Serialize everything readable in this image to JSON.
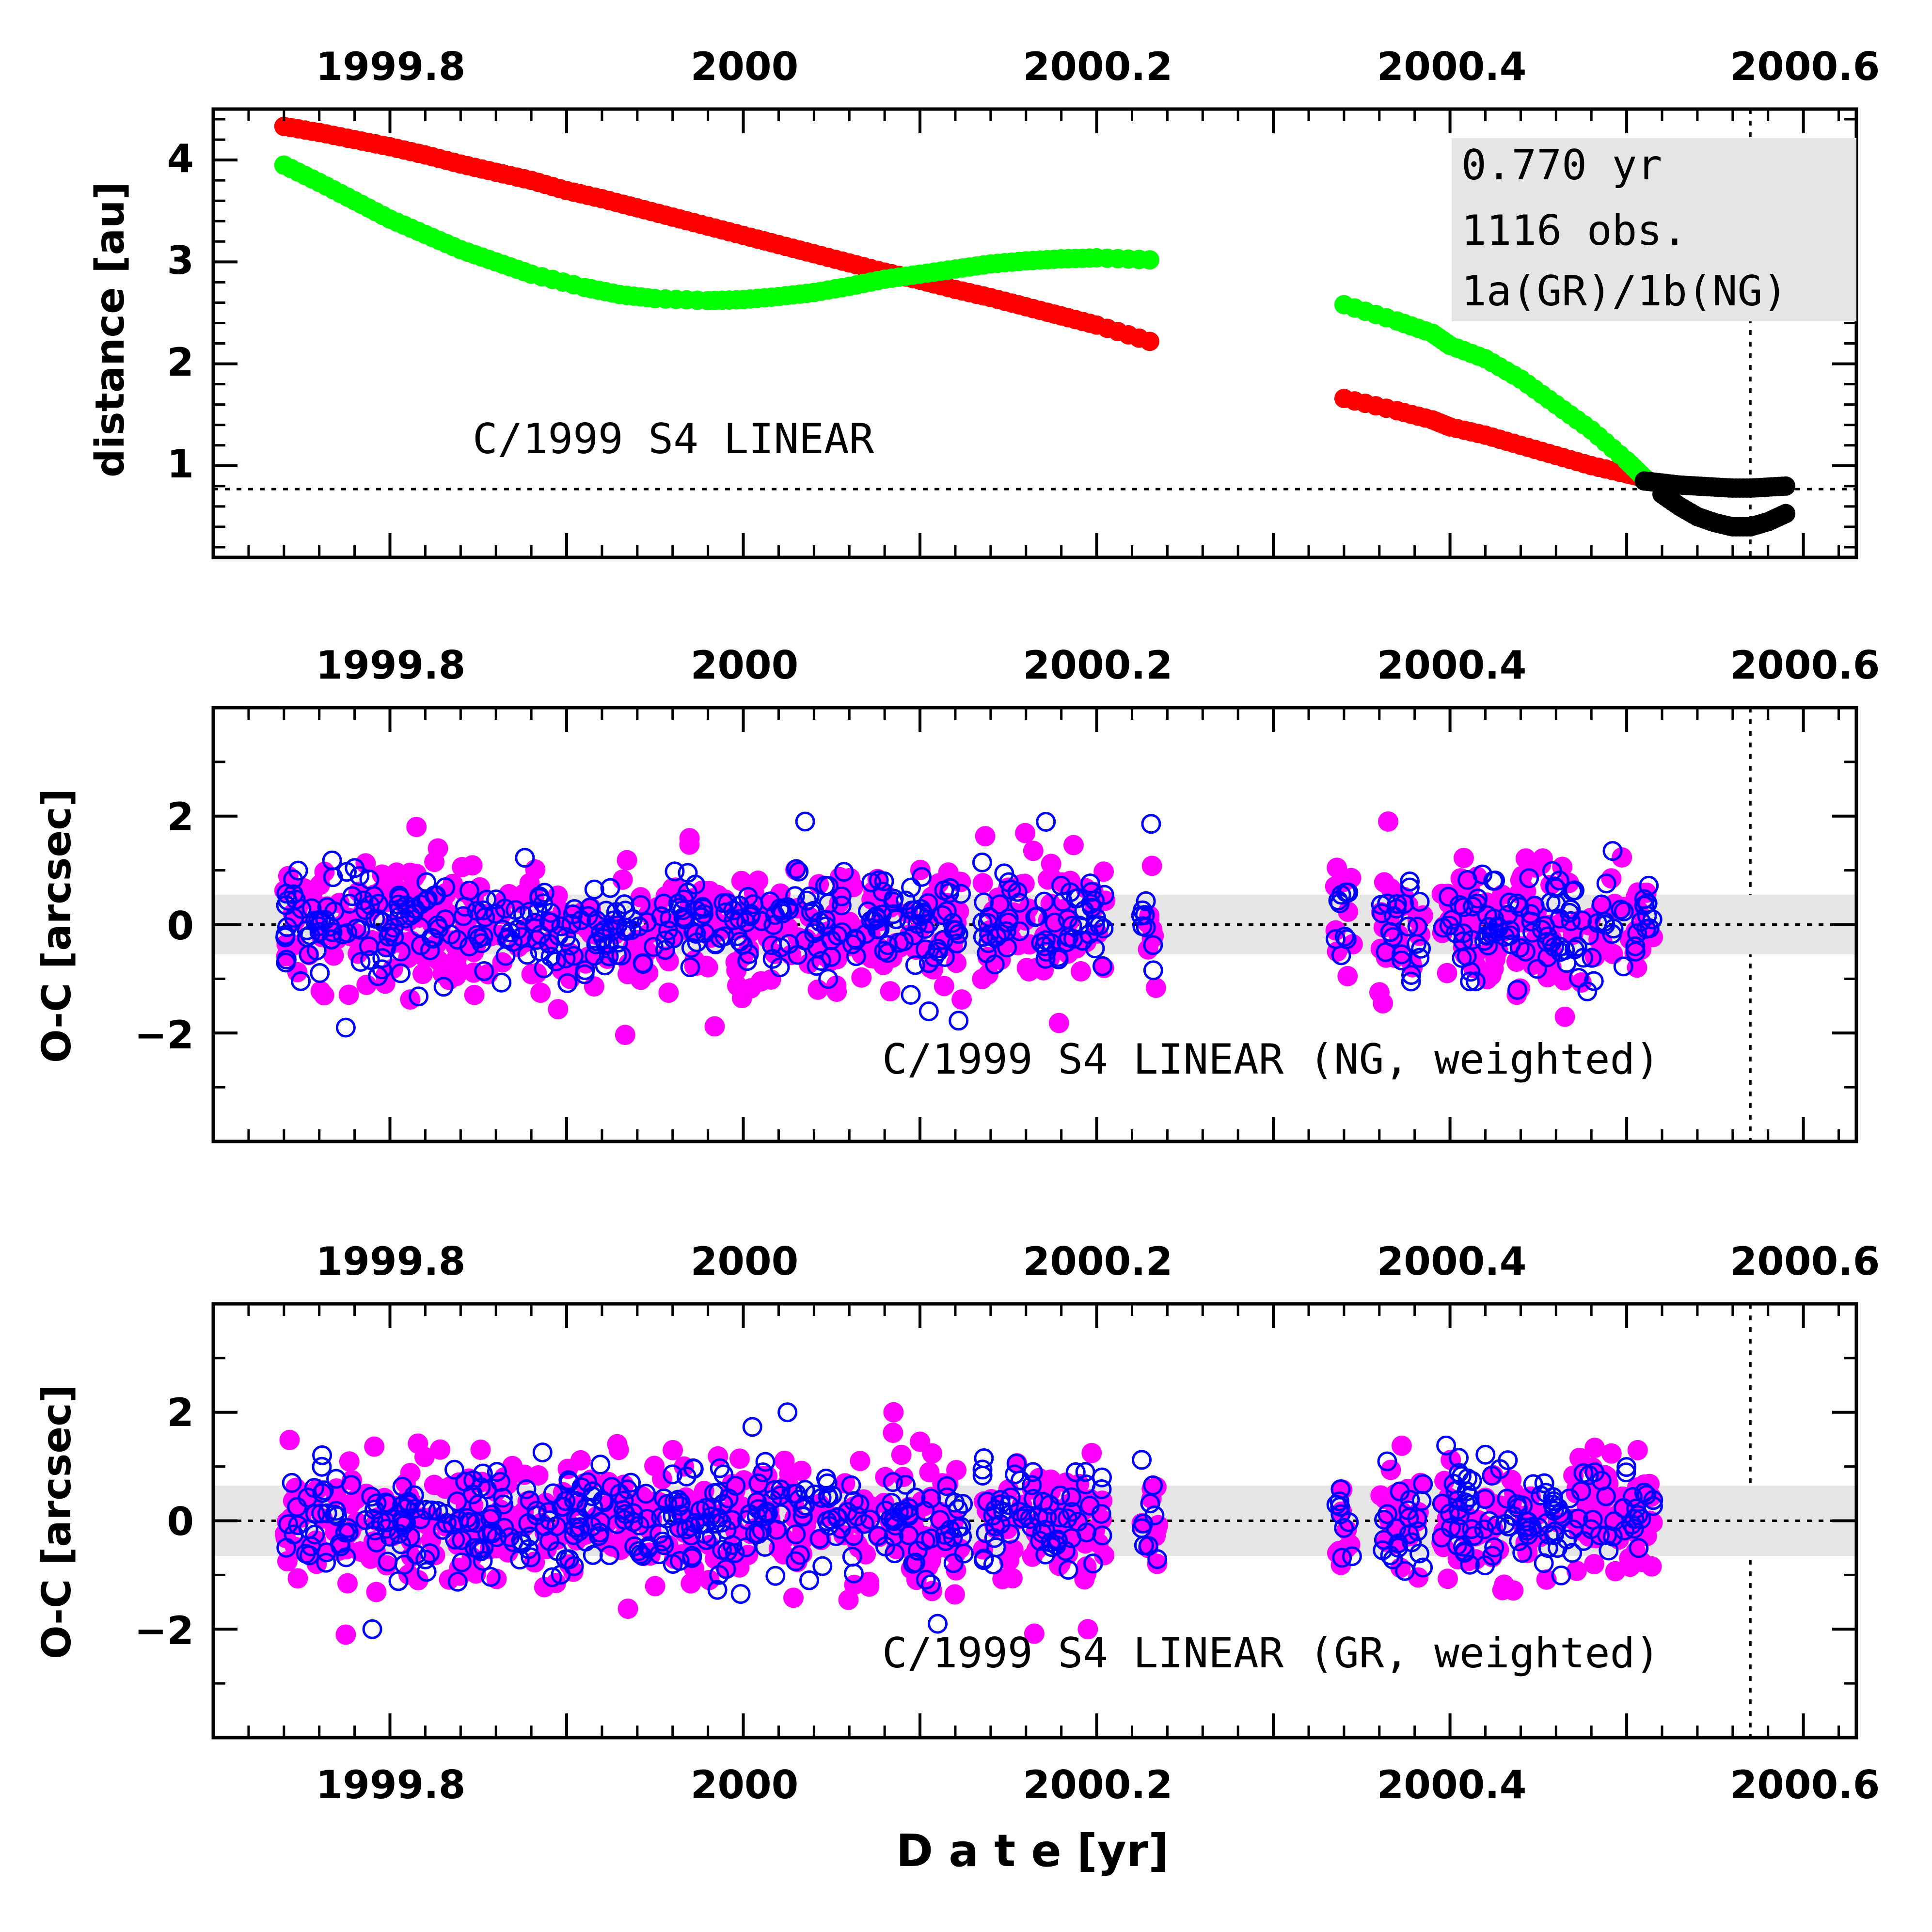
{
  "chart_data": [
    {
      "type": "scatter",
      "panel": "distance",
      "ylabel": "distance [au]",
      "x_tick_labels_top": [
        "1999.8",
        "2000",
        "2000.2",
        "2000.4",
        "2000.6"
      ],
      "y_tick_labels": [
        "1",
        "2",
        "3",
        "4"
      ],
      "xlim": [
        1999.7,
        2000.63
      ],
      "ylim": [
        0.1,
        4.5
      ],
      "reference_line_y": 0.77,
      "reference_line_x": 2000.57,
      "annotation": "C/1999 S4 LINEAR",
      "info_box": [
        "0.770 yr",
        "1116 obs.",
        "1a(GR)/1b(NG)"
      ],
      "colors": {
        "heliocentric": "#ff0000",
        "geocentric": "#00ff00",
        "post_fit": "#000000",
        "box": "#e5e5e5"
      },
      "series": [
        {
          "color_key": "heliocentric",
          "points": [
            [
              1999.74,
              4.33
            ],
            [
              1999.76,
              4.27
            ],
            [
              1999.78,
              4.2
            ],
            [
              1999.8,
              4.13
            ],
            [
              1999.82,
              4.05
            ],
            [
              1999.84,
              3.96
            ],
            [
              1999.86,
              3.88
            ],
            [
              1999.88,
              3.8
            ],
            [
              1999.9,
              3.7
            ],
            [
              1999.92,
              3.62
            ],
            [
              1999.94,
              3.53
            ],
            [
              1999.96,
              3.44
            ],
            [
              1999.98,
              3.35
            ],
            [
              2000.0,
              3.26
            ],
            [
              2000.02,
              3.17
            ],
            [
              2000.04,
              3.08
            ],
            [
              2000.06,
              2.99
            ],
            [
              2000.08,
              2.9
            ],
            [
              2000.1,
              2.82
            ],
            [
              2000.12,
              2.73
            ],
            [
              2000.14,
              2.65
            ],
            [
              2000.16,
              2.56
            ],
            [
              2000.18,
              2.47
            ],
            [
              2000.2,
              2.38
            ],
            [
              2000.23,
              2.22
            ],
            [
              2000.34,
              1.66
            ],
            [
              2000.37,
              1.54
            ],
            [
              2000.39,
              1.45
            ],
            [
              2000.4,
              1.38
            ],
            [
              2000.42,
              1.3
            ],
            [
              2000.44,
              1.2
            ],
            [
              2000.46,
              1.1
            ],
            [
              2000.48,
              1.0
            ],
            [
              2000.5,
              0.92
            ],
            [
              2000.51,
              0.88
            ]
          ]
        },
        {
          "color_key": "geocentric",
          "points": [
            [
              1999.74,
              3.95
            ],
            [
              1999.76,
              3.78
            ],
            [
              1999.78,
              3.6
            ],
            [
              1999.8,
              3.42
            ],
            [
              1999.82,
              3.27
            ],
            [
              1999.84,
              3.12
            ],
            [
              1999.86,
              3.0
            ],
            [
              1999.88,
              2.88
            ],
            [
              1999.91,
              2.75
            ],
            [
              1999.93,
              2.68
            ],
            [
              1999.95,
              2.64
            ],
            [
              1999.98,
              2.62
            ],
            [
              2000.0,
              2.63
            ],
            [
              2000.02,
              2.66
            ],
            [
              2000.04,
              2.7
            ],
            [
              2000.06,
              2.76
            ],
            [
              2000.08,
              2.83
            ],
            [
              2000.1,
              2.88
            ],
            [
              2000.12,
              2.93
            ],
            [
              2000.14,
              2.98
            ],
            [
              2000.16,
              3.01
            ],
            [
              2000.18,
              3.03
            ],
            [
              2000.2,
              3.04
            ],
            [
              2000.23,
              3.02
            ],
            [
              2000.34,
              2.58
            ],
            [
              2000.37,
              2.42
            ],
            [
              2000.39,
              2.3
            ],
            [
              2000.4,
              2.18
            ],
            [
              2000.42,
              2.05
            ],
            [
              2000.44,
              1.85
            ],
            [
              2000.46,
              1.6
            ],
            [
              2000.48,
              1.35
            ],
            [
              2000.5,
              1.05
            ],
            [
              2000.51,
              0.88
            ]
          ]
        },
        {
          "color_key": "post_fit",
          "points": [
            [
              2000.51,
              0.85
            ],
            [
              2000.52,
              0.83
            ],
            [
              2000.53,
              0.81
            ],
            [
              2000.54,
              0.8
            ],
            [
              2000.55,
              0.79
            ],
            [
              2000.56,
              0.78
            ],
            [
              2000.57,
              0.78
            ],
            [
              2000.58,
              0.79
            ],
            [
              2000.59,
              0.8
            ],
            [
              2000.52,
              0.72
            ],
            [
              2000.53,
              0.6
            ],
            [
              2000.54,
              0.5
            ],
            [
              2000.55,
              0.44
            ],
            [
              2000.56,
              0.4
            ],
            [
              2000.57,
              0.4
            ],
            [
              2000.58,
              0.45
            ],
            [
              2000.59,
              0.53
            ]
          ]
        }
      ]
    },
    {
      "type": "scatter",
      "panel": "residuals_ng",
      "ylabel": "O-C [arcsec]",
      "x_tick_labels_top": [
        "1999.8",
        "2000",
        "2000.2",
        "2000.4",
        "2000.6"
      ],
      "y_tick_labels": [
        "−2",
        "0",
        "2"
      ],
      "xlim": [
        1999.7,
        2000.63
      ],
      "ylim": [
        -4,
        4
      ],
      "reference_line_x": 2000.57,
      "band": [
        -0.55,
        0.55
      ],
      "annotation": "C/1999 S4 LINEAR (NG, weighted)",
      "colors": {
        "filled": "#ff00ff",
        "open": "#0000ff",
        "band": "#e5e5e5"
      },
      "observation_windows": [
        [
          1999.74,
          2000.125
        ],
        [
          2000.135,
          2000.205
        ],
        [
          2000.225,
          2000.235
        ],
        [
          2000.335,
          2000.345
        ],
        [
          2000.36,
          2000.385
        ],
        [
          2000.395,
          2000.515
        ]
      ],
      "notable_points": [
        [
          1999.815,
          1.8
        ],
        [
          2000.035,
          1.9
        ],
        [
          2000.365,
          1.9
        ],
        [
          1999.775,
          -1.9
        ],
        [
          2000.465,
          -1.7
        ],
        [
          2000.105,
          -1.6
        ]
      ]
    },
    {
      "type": "scatter",
      "panel": "residuals_gr",
      "ylabel": "O-C [arcsec]",
      "x_tick_labels_top": [
        "1999.8",
        "2000",
        "2000.2",
        "2000.4",
        "2000.6"
      ],
      "x_tick_labels_bottom": [
        "1999.8",
        "2000",
        "2000.2",
        "2000.4",
        "2000.6"
      ],
      "xlabel": "D a t e [yr]",
      "y_tick_labels": [
        "−2",
        "0",
        "2"
      ],
      "xlim": [
        1999.7,
        2000.63
      ],
      "ylim": [
        -4,
        4
      ],
      "reference_line_x": 2000.57,
      "band": [
        -0.65,
        0.65
      ],
      "annotation": "C/1999 S4 LINEAR (GR, weighted)",
      "colors": {
        "filled": "#ff00ff",
        "open": "#0000ff",
        "band": "#e5e5e5"
      },
      "observation_windows": [
        [
          1999.74,
          2000.125
        ],
        [
          2000.135,
          2000.205
        ],
        [
          2000.225,
          2000.235
        ],
        [
          2000.335,
          2000.345
        ],
        [
          2000.36,
          2000.385
        ],
        [
          2000.395,
          2000.515
        ]
      ],
      "notable_points": [
        [
          2000.085,
          2.0
        ],
        [
          2000.025,
          2.0
        ],
        [
          1999.775,
          -2.1
        ],
        [
          1999.79,
          -2.0
        ],
        [
          2000.195,
          -2.0
        ],
        [
          2000.11,
          -1.9
        ]
      ]
    }
  ]
}
